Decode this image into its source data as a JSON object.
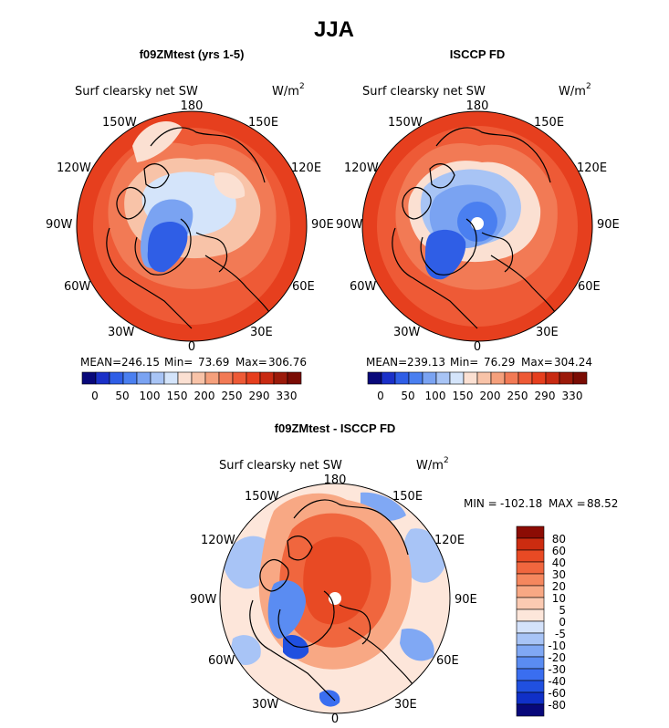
{
  "title": "JJA",
  "panels": [
    {
      "title": "f09ZMtest (yrs 1-5)",
      "field_label": "Surf clearsky net SW",
      "units": "W/m",
      "units_exp": "2",
      "stats": {
        "mean_label": "MEAN=",
        "mean": "246.15",
        "min_label": "Min=",
        "min": "73.69",
        "max_label": "Max=",
        "max": "306.76"
      },
      "colorbar_ticks": [
        "0",
        "50",
        "100",
        "150",
        "200",
        "250",
        "290",
        "330"
      ]
    },
    {
      "title": "ISCCP FD",
      "field_label": "Surf clearsky net SW",
      "units": "W/m",
      "units_exp": "2",
      "stats": {
        "mean_label": "MEAN=",
        "mean": "239.13",
        "min_label": "Min=",
        "min": "76.29",
        "max_label": "Max=",
        "max": "304.24"
      },
      "colorbar_ticks": [
        "0",
        "50",
        "100",
        "150",
        "200",
        "250",
        "290",
        "330"
      ]
    },
    {
      "title": "f09ZMtest - ISCCP FD",
      "field_label": "Surf clearsky net SW",
      "units": "W/m",
      "units_exp": "2",
      "stats": {
        "min_label": "MIN =",
        "min": "-102.18",
        "max_label": "MAX =",
        "max": "88.52"
      },
      "colorbar_ticks": [
        "80",
        "60",
        "40",
        "30",
        "20",
        "10",
        "5",
        "0",
        "-5",
        "-10",
        "-20",
        "-30",
        "-40",
        "-60",
        "-80"
      ]
    }
  ],
  "lon_labels": [
    "180",
    "150E",
    "120E",
    "90E",
    "60E",
    "30E",
    "0",
    "30W",
    "60W",
    "90W",
    "120W",
    "150W"
  ],
  "colors": {
    "abs_scale": [
      "#08087a",
      "#1a30c8",
      "#2f5ee6",
      "#4a7ff0",
      "#7aa3f2",
      "#a8c4f5",
      "#d4e4fa",
      "#fbe0d2",
      "#f8c3a8",
      "#f5a07c",
      "#f27a55",
      "#ee5a36",
      "#e63f1e",
      "#c82a12",
      "#9b1a0a",
      "#7a0c04"
    ],
    "diff_scale": [
      "#08087a",
      "#1030c8",
      "#2050e0",
      "#3a6ef0",
      "#5a8cf2",
      "#80a8f4",
      "#a8c4f6",
      "#d4e2fa",
      "#fde6da",
      "#fbcab2",
      "#f8a884",
      "#f5875e",
      "#f0663e",
      "#e84a24",
      "#cc2c10",
      "#8c0c04"
    ]
  }
}
